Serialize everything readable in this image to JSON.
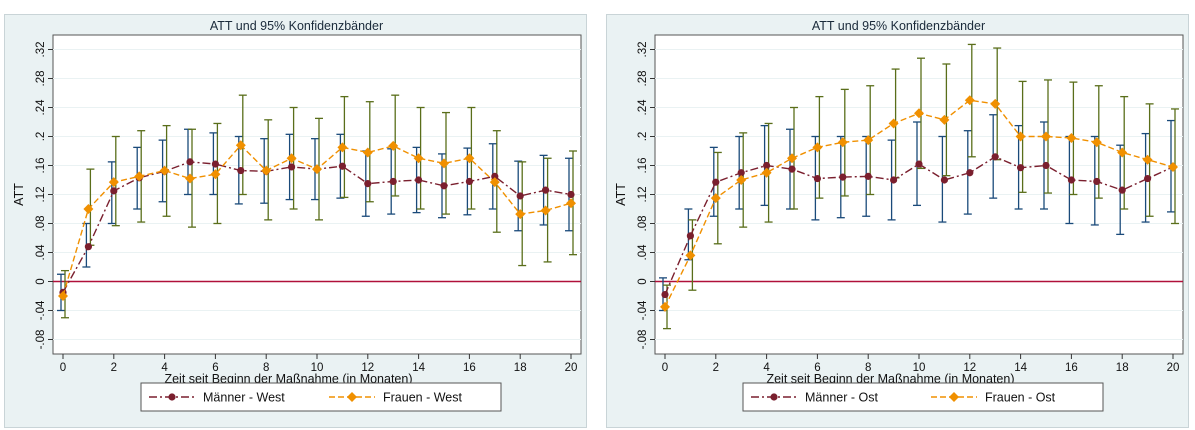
{
  "colors": {
    "background": "#eaf2f3",
    "plot_bg": "#ffffff",
    "grid": "#eaf2f3",
    "zero_line": "#b0103a",
    "maenner": "#7a1f2e",
    "maenner_ci": "#1a4a7a",
    "frauen": "#f09000",
    "frauen_ci": "#5a6e1a"
  },
  "chart_data": [
    {
      "type": "line",
      "title": "ATT und 95% Konfidenzbänder",
      "xlabel": "Zeit seit Beginn der Maßnahme (in Monaten)",
      "ylabel": "ATT",
      "xlim": [
        0,
        20
      ],
      "ylim": [
        -0.1,
        0.34
      ],
      "xticks": [
        0,
        2,
        4,
        6,
        8,
        10,
        12,
        14,
        16,
        18,
        20
      ],
      "xtick_labels": [
        "0",
        "2",
        "4",
        "6",
        "8",
        "10",
        "12",
        "14",
        "16",
        "18",
        "20"
      ],
      "yticks": [
        -0.08,
        -0.04,
        0,
        0.04,
        0.08,
        0.12,
        0.16,
        0.2,
        0.24,
        0.28,
        0.32
      ],
      "ytick_labels": [
        "-.08",
        "-.04",
        "0",
        ".04",
        ".08",
        ".12",
        ".16",
        ".2",
        ".24",
        ".28",
        ".32"
      ],
      "grid": true,
      "legend_position": "bottom",
      "x": [
        0,
        1,
        2,
        3,
        4,
        5,
        6,
        7,
        8,
        9,
        10,
        11,
        12,
        13,
        14,
        15,
        16,
        17,
        18,
        19,
        20
      ],
      "series": [
        {
          "name": "Männer - West",
          "marker": "circle",
          "dash": "dash-dot",
          "values": [
            -0.015,
            0.048,
            0.125,
            0.143,
            0.152,
            0.165,
            0.162,
            0.153,
            0.152,
            0.158,
            0.155,
            0.159,
            0.135,
            0.138,
            0.14,
            0.132,
            0.138,
            0.145,
            0.118,
            0.126,
            0.12
          ],
          "ci_low": [
            -0.04,
            0.02,
            0.08,
            0.1,
            0.11,
            0.12,
            0.12,
            0.107,
            0.108,
            0.113,
            0.113,
            0.115,
            0.09,
            0.093,
            0.095,
            0.088,
            0.092,
            0.1,
            0.07,
            0.078,
            0.07
          ],
          "ci_high": [
            0.01,
            0.08,
            0.165,
            0.185,
            0.195,
            0.21,
            0.205,
            0.2,
            0.197,
            0.203,
            0.197,
            0.203,
            0.18,
            0.183,
            0.185,
            0.176,
            0.184,
            0.19,
            0.166,
            0.174,
            0.17
          ]
        },
        {
          "name": "Frauen - West",
          "marker": "diamond",
          "dash": "dash",
          "values": [
            -0.02,
            0.1,
            0.137,
            0.145,
            0.153,
            0.142,
            0.148,
            0.188,
            0.153,
            0.17,
            0.155,
            0.185,
            0.178,
            0.187,
            0.17,
            0.163,
            0.17,
            0.137,
            0.093,
            0.098,
            0.108
          ],
          "ci_low": [
            -0.05,
            0.05,
            0.077,
            0.082,
            0.09,
            0.075,
            0.08,
            0.12,
            0.085,
            0.1,
            0.085,
            0.116,
            0.11,
            0.118,
            0.1,
            0.093,
            0.1,
            0.068,
            0.022,
            0.027,
            0.037
          ],
          "ci_high": [
            0.015,
            0.155,
            0.2,
            0.208,
            0.215,
            0.21,
            0.218,
            0.257,
            0.223,
            0.24,
            0.225,
            0.255,
            0.248,
            0.257,
            0.24,
            0.233,
            0.24,
            0.208,
            0.165,
            0.17,
            0.18
          ]
        }
      ]
    },
    {
      "type": "line",
      "title": "ATT und 95% Konfidenzbänder",
      "xlabel": "Zeit seit Beginn der Maßnahme (in Monaten)",
      "ylabel": "ATT",
      "xlim": [
        0,
        20
      ],
      "ylim": [
        -0.1,
        0.34
      ],
      "xticks": [
        0,
        2,
        4,
        6,
        8,
        10,
        12,
        14,
        16,
        18,
        20
      ],
      "xtick_labels": [
        "0",
        "2",
        "4",
        "6",
        "8",
        "10",
        "12",
        "14",
        "16",
        "18",
        "20"
      ],
      "yticks": [
        -0.08,
        -0.04,
        0,
        0.04,
        0.08,
        0.12,
        0.16,
        0.2,
        0.24,
        0.28,
        0.32
      ],
      "ytick_labels": [
        "-.08",
        "-.04",
        "0",
        ".04",
        ".08",
        ".12",
        ".16",
        ".2",
        ".24",
        ".28",
        ".32"
      ],
      "grid": true,
      "legend_position": "bottom",
      "x": [
        0,
        1,
        2,
        3,
        4,
        5,
        6,
        7,
        8,
        9,
        10,
        11,
        12,
        13,
        14,
        15,
        16,
        17,
        18,
        19,
        20
      ],
      "series": [
        {
          "name": "Männer - Ost",
          "marker": "circle",
          "dash": "dash-dot",
          "values": [
            -0.018,
            0.063,
            0.137,
            0.15,
            0.16,
            0.155,
            0.142,
            0.144,
            0.145,
            0.14,
            0.162,
            0.14,
            0.15,
            0.172,
            0.157,
            0.16,
            0.14,
            0.138,
            0.126,
            0.142,
            0.158
          ],
          "ci_low": [
            -0.04,
            0.03,
            0.09,
            0.1,
            0.105,
            0.1,
            0.085,
            0.088,
            0.09,
            0.085,
            0.105,
            0.082,
            0.093,
            0.115,
            0.1,
            0.1,
            0.08,
            0.078,
            0.065,
            0.082,
            0.096
          ],
          "ci_high": [
            0.005,
            0.1,
            0.185,
            0.2,
            0.215,
            0.21,
            0.2,
            0.2,
            0.2,
            0.195,
            0.22,
            0.2,
            0.208,
            0.23,
            0.215,
            0.22,
            0.2,
            0.2,
            0.188,
            0.204,
            0.222
          ]
        },
        {
          "name": "Frauen - Ost",
          "marker": "diamond",
          "dash": "dash",
          "values": [
            -0.035,
            0.036,
            0.115,
            0.14,
            0.15,
            0.17,
            0.185,
            0.192,
            0.195,
            0.218,
            0.232,
            0.223,
            0.25,
            0.245,
            0.2,
            0.2,
            0.198,
            0.192,
            0.178,
            0.168,
            0.158
          ],
          "ci_low": [
            -0.065,
            -0.012,
            0.052,
            0.075,
            0.082,
            0.1,
            0.115,
            0.118,
            0.12,
            0.143,
            0.156,
            0.146,
            0.172,
            0.168,
            0.123,
            0.122,
            0.12,
            0.115,
            0.1,
            0.09,
            0.08
          ],
          "ci_high": [
            -0.005,
            0.085,
            0.178,
            0.205,
            0.218,
            0.24,
            0.255,
            0.265,
            0.27,
            0.293,
            0.308,
            0.3,
            0.327,
            0.322,
            0.276,
            0.278,
            0.275,
            0.27,
            0.255,
            0.245,
            0.238
          ]
        }
      ]
    }
  ]
}
